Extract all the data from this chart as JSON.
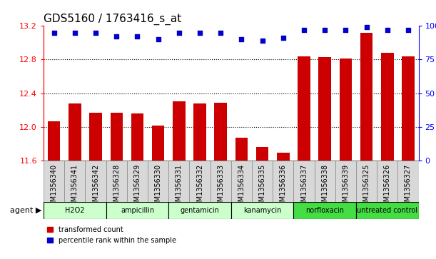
{
  "title": "GDS5160 / 1763416_s_at",
  "samples": [
    "GSM1356340",
    "GSM1356341",
    "GSM1356342",
    "GSM1356328",
    "GSM1356329",
    "GSM1356330",
    "GSM1356331",
    "GSM1356332",
    "GSM1356333",
    "GSM1356334",
    "GSM1356335",
    "GSM1356336",
    "GSM1356337",
    "GSM1356338",
    "GSM1356339",
    "GSM1356325",
    "GSM1356326",
    "GSM1356327"
  ],
  "bar_values": [
    12.07,
    12.28,
    12.17,
    12.17,
    12.16,
    12.02,
    12.3,
    12.28,
    12.29,
    11.87,
    11.76,
    11.69,
    12.84,
    12.83,
    12.81,
    13.12,
    12.88,
    12.84
  ],
  "percentile_values": [
    95,
    95,
    95,
    92,
    92,
    90,
    95,
    95,
    95,
    90,
    89,
    91,
    97,
    97,
    97,
    99,
    97,
    97
  ],
  "ylim_left": [
    11.6,
    13.2
  ],
  "ylim_right": [
    0,
    100
  ],
  "yticks_left": [
    11.6,
    12.0,
    12.4,
    12.8,
    13.2
  ],
  "yticks_right": [
    0,
    25,
    50,
    75,
    100
  ],
  "bar_color": "#cc0000",
  "dot_color": "#0000cc",
  "groups": [
    {
      "label": "H2O2",
      "start": 0,
      "end": 3,
      "color": "#ccffcc"
    },
    {
      "label": "ampicillin",
      "start": 3,
      "end": 6,
      "color": "#ccffcc"
    },
    {
      "label": "gentamicin",
      "start": 6,
      "end": 9,
      "color": "#ccffcc"
    },
    {
      "label": "kanamycin",
      "start": 9,
      "end": 12,
      "color": "#ccffcc"
    },
    {
      "label": "norfloxacin",
      "start": 12,
      "end": 15,
      "color": "#44dd44"
    },
    {
      "label": "untreated control",
      "start": 15,
      "end": 18,
      "color": "#44dd44"
    }
  ],
  "legend_bar_label": "transformed count",
  "legend_dot_label": "percentile rank within the sample",
  "agent_label": "agent",
  "title_fontsize": 11,
  "tick_fontsize": 7,
  "label_fontsize": 8,
  "gridline_yticks": [
    12.0,
    12.4,
    12.8
  ],
  "sample_box_color": "#d8d8d8",
  "sample_box_edge": "#888888"
}
